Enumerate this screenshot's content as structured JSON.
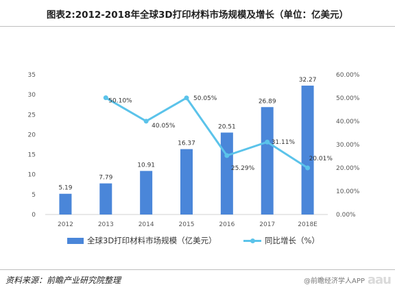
{
  "title": "图表2:2012-2018年全球3D打印材料市场规模及增长（单位：亿美元）",
  "source": "资料来源：前瞻产业研究院整理",
  "watermark": {
    "text": "@前瞻经济学人APP",
    "logo": "aau"
  },
  "colors": {
    "bar": "#4a86d9",
    "line": "#5bc3ea",
    "axis": "#d0d0d0"
  },
  "chart_data": {
    "type": "bar",
    "categories": [
      "2012",
      "2013",
      "2014",
      "2015",
      "2016",
      "2017",
      "2018E"
    ],
    "series": [
      {
        "name": "全球3D打印材料市场规模（亿美元）",
        "type": "bar",
        "axis": "left",
        "values": [
          5.19,
          7.79,
          10.91,
          16.37,
          20.51,
          26.89,
          32.27
        ],
        "labels": [
          "5.19",
          "7.79",
          "10.91",
          "16.37",
          "20.51",
          "26.89",
          "32.27"
        ]
      },
      {
        "name": "同比增长（%）",
        "type": "line",
        "axis": "right",
        "values": [
          null,
          50.1,
          40.05,
          50.05,
          25.29,
          31.11,
          20.01
        ],
        "labels": [
          null,
          "50.10%",
          "40.05%",
          "50.05%",
          "25.29%",
          "31.11%",
          "20.01%"
        ]
      }
    ],
    "y_left": {
      "min": 0,
      "max": 35,
      "ticks": [
        "0",
        "5",
        "10",
        "15",
        "20",
        "25",
        "30",
        "35"
      ]
    },
    "y_right": {
      "min": 0,
      "max": 60,
      "ticks": [
        "0.00%",
        "10.00%",
        "20.00%",
        "30.00%",
        "40.00%",
        "50.00%",
        "60.00%"
      ]
    },
    "grid": false,
    "legend": "bottom"
  }
}
